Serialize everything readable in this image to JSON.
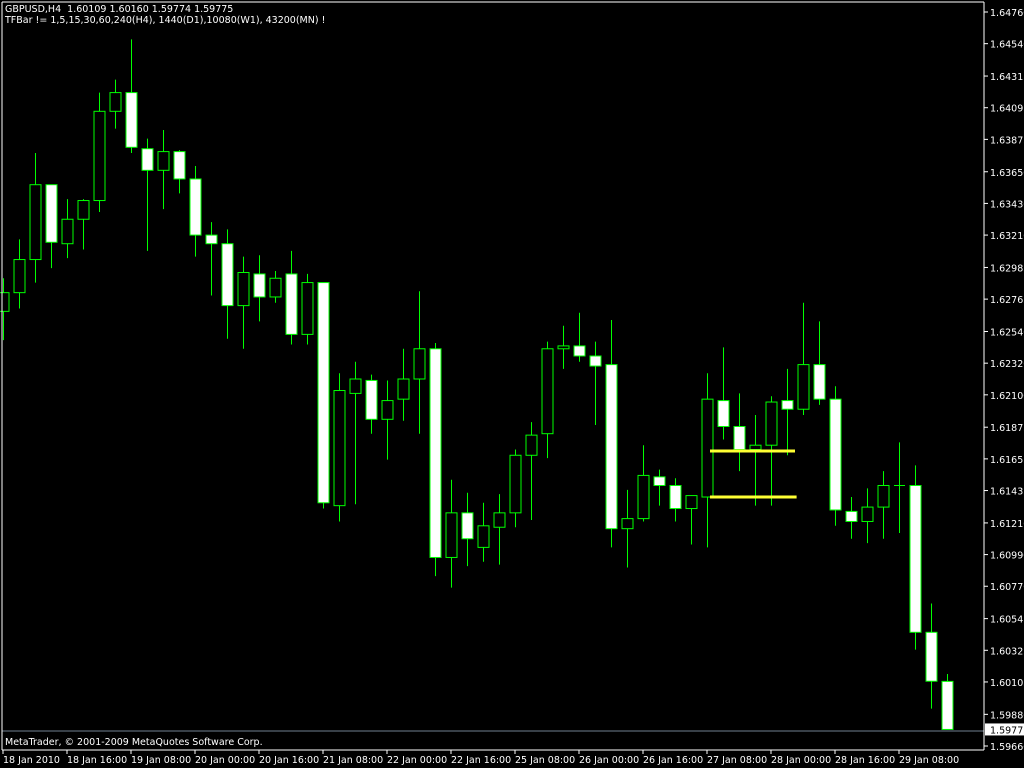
{
  "header": {
    "symbol_line": "GBPUSD,H4  1.60109 1.60160 1.59774 1.59775",
    "indicator_line": "TFBar != 1,5,15,30,60,240(H4), 1440(D1),10080(W1), 43200(MN) !"
  },
  "footer": {
    "copyright": "MetaTrader, © 2001-2009 MetaQuotes Software Corp."
  },
  "colors": {
    "background": "#000000",
    "candle_outline": "#00ff00",
    "bear_body": "#ffffff",
    "bull_body": "#000000",
    "levels": "#ffff33",
    "axis": "#ffffff",
    "price_line": "#708090"
  },
  "chart_data": {
    "type": "candlestick",
    "symbol": "GBPUSD",
    "timeframe": "H4",
    "ylim": [
      1.5966,
      1.6476
    ],
    "y_ticks": [
      "1.64760",
      "1.64540",
      "1.64315",
      "1.64095",
      "1.63875",
      "1.63650",
      "1.63430",
      "1.63210",
      "1.62985",
      "1.62765",
      "1.62540",
      "1.62320",
      "1.62100",
      "1.61875",
      "1.61655",
      "1.61435",
      "1.61210",
      "1.60990",
      "1.60770",
      "1.60545",
      "1.60325",
      "1.60105",
      "1.59880",
      "1.59660"
    ],
    "current_price": "1.59775",
    "x_ticks": [
      "18 Jan 2010",
      "18 Jan 16:00",
      "19 Jan 08:00",
      "20 Jan 00:00",
      "20 Jan 16:00",
      "21 Jan 08:00",
      "22 Jan 00:00",
      "22 Jan 16:00",
      "25 Jan 08:00",
      "26 Jan 00:00",
      "26 Jan 16:00",
      "27 Jan 08:00",
      "28 Jan 00:00",
      "28 Jan 16:00",
      "29 Jan 08:00"
    ],
    "ohlc": [
      [
        1.6268,
        1.6291,
        1.6248,
        1.6281
      ],
      [
        1.6281,
        1.6318,
        1.627,
        1.6304
      ],
      [
        1.6304,
        1.6378,
        1.6288,
        1.6356
      ],
      [
        1.6356,
        1.6356,
        1.6298,
        1.6316
      ],
      [
        1.6315,
        1.6346,
        1.6305,
        1.6332
      ],
      [
        1.6332,
        1.6346,
        1.6311,
        1.6345
      ],
      [
        1.6345,
        1.642,
        1.6337,
        1.6407
      ],
      [
        1.6407,
        1.6429,
        1.6395,
        1.642
      ],
      [
        1.642,
        1.6457,
        1.6378,
        1.6382
      ],
      [
        1.6381,
        1.6388,
        1.631,
        1.6366
      ],
      [
        1.6366,
        1.6394,
        1.6339,
        1.6379
      ],
      [
        1.6379,
        1.638,
        1.635,
        1.636
      ],
      [
        1.636,
        1.6369,
        1.6306,
        1.6321
      ],
      [
        1.6321,
        1.633,
        1.6279,
        1.6315
      ],
      [
        1.6315,
        1.6325,
        1.6249,
        1.6272
      ],
      [
        1.6272,
        1.6306,
        1.6242,
        1.6295
      ],
      [
        1.6294,
        1.6307,
        1.6261,
        1.6278
      ],
      [
        1.6278,
        1.6296,
        1.6274,
        1.6291
      ],
      [
        1.6294,
        1.631,
        1.6245,
        1.6252
      ],
      [
        1.6252,
        1.6294,
        1.6245,
        1.6288
      ],
      [
        1.6288,
        1.6288,
        1.6131,
        1.6135
      ],
      [
        1.6133,
        1.6225,
        1.6122,
        1.6213
      ],
      [
        1.6211,
        1.6233,
        1.6134,
        1.6221
      ],
      [
        1.622,
        1.6224,
        1.6183,
        1.6193
      ],
      [
        1.6193,
        1.622,
        1.6165,
        1.6206
      ],
      [
        1.6207,
        1.6242,
        1.6192,
        1.6221
      ],
      [
        1.6221,
        1.6282,
        1.6183,
        1.6242
      ],
      [
        1.6242,
        1.6246,
        1.6084,
        1.6097
      ],
      [
        1.6097,
        1.6151,
        1.6076,
        1.6128
      ],
      [
        1.6128,
        1.6142,
        1.6091,
        1.611
      ],
      [
        1.6104,
        1.6135,
        1.6094,
        1.6119
      ],
      [
        1.6118,
        1.6141,
        1.6092,
        1.6128
      ],
      [
        1.6128,
        1.6172,
        1.6118,
        1.6168
      ],
      [
        1.6168,
        1.6191,
        1.6123,
        1.6182
      ],
      [
        1.6183,
        1.6247,
        1.6166,
        1.6242
      ],
      [
        1.6242,
        1.6258,
        1.6228,
        1.6244
      ],
      [
        1.6244,
        1.6267,
        1.6233,
        1.6237
      ],
      [
        1.6237,
        1.6247,
        1.6189,
        1.623
      ],
      [
        1.6231,
        1.6262,
        1.6104,
        1.6117
      ],
      [
        1.6117,
        1.6144,
        1.609,
        1.6124
      ],
      [
        1.6124,
        1.6175,
        1.6122,
        1.6154
      ],
      [
        1.6153,
        1.6158,
        1.6133,
        1.6147
      ],
      [
        1.6147,
        1.6152,
        1.6122,
        1.6131
      ],
      [
        1.6131,
        1.614,
        1.6106,
        1.614
      ],
      [
        1.6139,
        1.6225,
        1.6104,
        1.6207
      ],
      [
        1.6206,
        1.6243,
        1.6179,
        1.6188
      ],
      [
        1.6188,
        1.6211,
        1.6157,
        1.6172
      ],
      [
        1.6172,
        1.6196,
        1.6133,
        1.6175
      ],
      [
        1.6175,
        1.6209,
        1.6133,
        1.6205
      ],
      [
        1.6206,
        1.6228,
        1.6168,
        1.62
      ],
      [
        1.62,
        1.6274,
        1.6196,
        1.6231
      ],
      [
        1.6231,
        1.6261,
        1.6203,
        1.6207
      ],
      [
        1.6207,
        1.6216,
        1.6119,
        1.613
      ],
      [
        1.6129,
        1.6139,
        1.611,
        1.6122
      ],
      [
        1.6122,
        1.6145,
        1.6107,
        1.6132
      ],
      [
        1.6132,
        1.6157,
        1.611,
        1.6147
      ],
      [
        1.6147,
        1.6177,
        1.6114,
        1.6147
      ],
      [
        1.6147,
        1.6161,
        1.6033,
        1.6045
      ],
      [
        1.6045,
        1.6065,
        1.5992,
        1.6011
      ],
      [
        1.60109,
        1.6016,
        1.59774,
        1.59775
      ]
    ],
    "levels": [
      {
        "price": 1.6171,
        "from_bar": 44,
        "to_bar": 49.5
      },
      {
        "price": 1.6139,
        "from_bar": 44,
        "to_bar": 49.6
      }
    ]
  }
}
